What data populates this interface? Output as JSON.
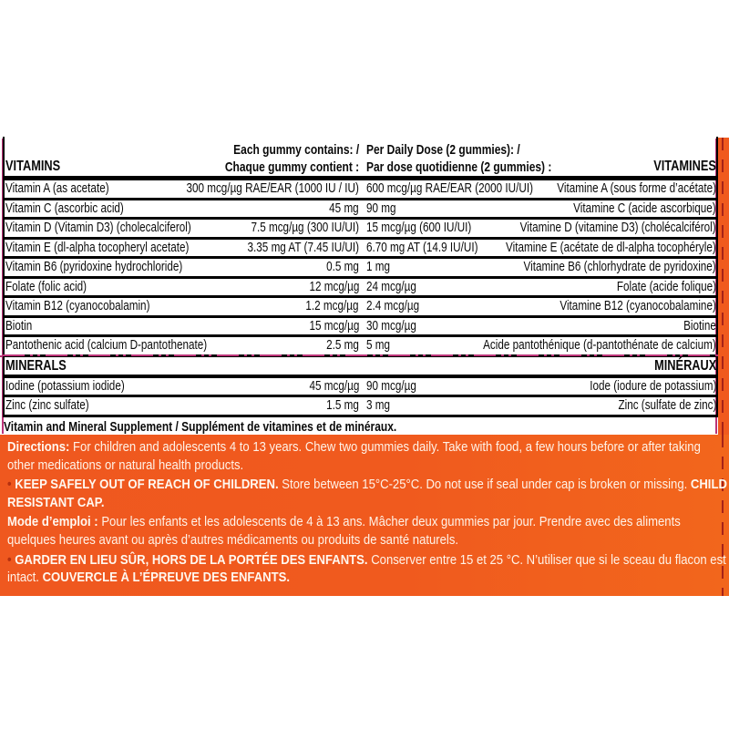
{
  "header": {
    "vitamins_en": "VITAMINS",
    "vitamins_fr": "VITAMINES",
    "each_line1": "Each gummy contains: /",
    "each_line2": "Chaque gummy contient :",
    "daily_line1": "Per Daily Dose (2 gummies): /",
    "daily_line2": "Par dose quotidienne (2 gummies) :",
    "minerals_en": "MINERALS",
    "minerals_fr": "MINÉRAUX"
  },
  "vitamin_rows": [
    {
      "en": "Vitamin A (as acetate)",
      "each": "300 mcg/µg RAE/EAR (1000 IU / IU)",
      "daily": "600 mcg/µg RAE/EAR (2000 IU/UI)",
      "fr": "Vitamine A (sous forme d’acétate)"
    },
    {
      "en": "Vitamin C (ascorbic acid)",
      "each": "45 mg",
      "daily": "90 mg",
      "fr": "Vitamine C (acide ascorbique)"
    },
    {
      "en": "Vitamin D (Vitamin D3) (cholecalciferol)",
      "each": "7.5 mcg/µg (300 IU/UI)",
      "daily": "15 mcg/µg (600 IU/UI)",
      "fr": "Vitamine D (vitamine D3) (cholécalciférol)"
    },
    {
      "en": "Vitamin E (dl-alpha tocopheryl acetate)",
      "each": "3.35 mg AT (7.45 IU/UI)",
      "daily": "6.70 mg AT (14.9 IU/UI)",
      "fr": "Vitamine E (acétate de dl-alpha tocophéryle)"
    },
    {
      "en": "Vitamin B6 (pyridoxine hydrochloride)",
      "each": "0.5 mg",
      "daily": "1 mg",
      "fr": "Vitamine B6 (chlorhydrate de pyridoxine)"
    },
    {
      "en": "Folate (folic acid)",
      "each": "12 mcg/µg",
      "daily": "24 mcg/µg",
      "fr": "Folate (acide folique)"
    },
    {
      "en": "Vitamin B12 (cyanocobalamin)",
      "each": "1.2 mcg/µg",
      "daily": "2.4 mcg/µg",
      "fr": "Vitamine B12 (cyanocobalamine)"
    },
    {
      "en": "Biotin",
      "each": "15 mcg/µg",
      "daily": "30 mcg/µg",
      "fr": "Biotine"
    },
    {
      "en": "Pantothenic acid (calcium D-pantothenate)",
      "each": "2.5 mg",
      "daily": "5 mg",
      "fr": "Acide pantothénique (d-pantothénate de calcium)"
    }
  ],
  "mineral_rows": [
    {
      "en": "Iodine (potassium iodide)",
      "each": "45 mcg/µg",
      "daily": "90 mcg/µg",
      "fr": "Iode (iodure de potassium)"
    },
    {
      "en": "Zinc (zinc sulfate)",
      "each": "1.5 mg",
      "daily": "3 mg",
      "fr": "Zinc (sulfate de zinc)"
    }
  ],
  "supplement_line": "Vitamin and Mineral Supplement / Supplément de vitamines et de minéraux.",
  "directions": {
    "bullet": "•",
    "en_label": "Directions:",
    "en_text": "For children and adolescents 4 to 13 years. Chew two gummies daily. Take with food, a few hours before or after taking other medications or natural health products.",
    "en_warn_bold1": "KEEP SAFELY OUT OF REACH OF CHILDREN.",
    "en_warn_text1": "Store between 15°C-25°C. Do not use if seal under cap is broken or missing.",
    "en_warn_bold2": "CHILD RESISTANT CAP.",
    "fr_label": "Mode d’emploi :",
    "fr_text": "Pour les enfants et les adolescents de 4 à 13 ans. Mâcher deux gummies par jour. Prendre avec des aliments quelques heures avant ou après d’autres médicaments ou produits de santé naturels.",
    "fr_warn_bold1": "GARDER EN LIEU SÛR, HORS DE LA PORTÉE DES ENFANTS.",
    "fr_warn_text1": "Conserver entre 15 et 25 °C. N’utiliser que si le sceau du flacon est intact.",
    "fr_warn_bold2": "COUVERCLE À L’ÉPREUVE DES ENFANTS."
  },
  "colors": {
    "panel_orange": "#f05a1e",
    "cut_line_magenta": "#bb3377",
    "cut_line_dark_red": "#a82318",
    "table_line_black": "#000000",
    "panel_text": "#fff3e8"
  }
}
